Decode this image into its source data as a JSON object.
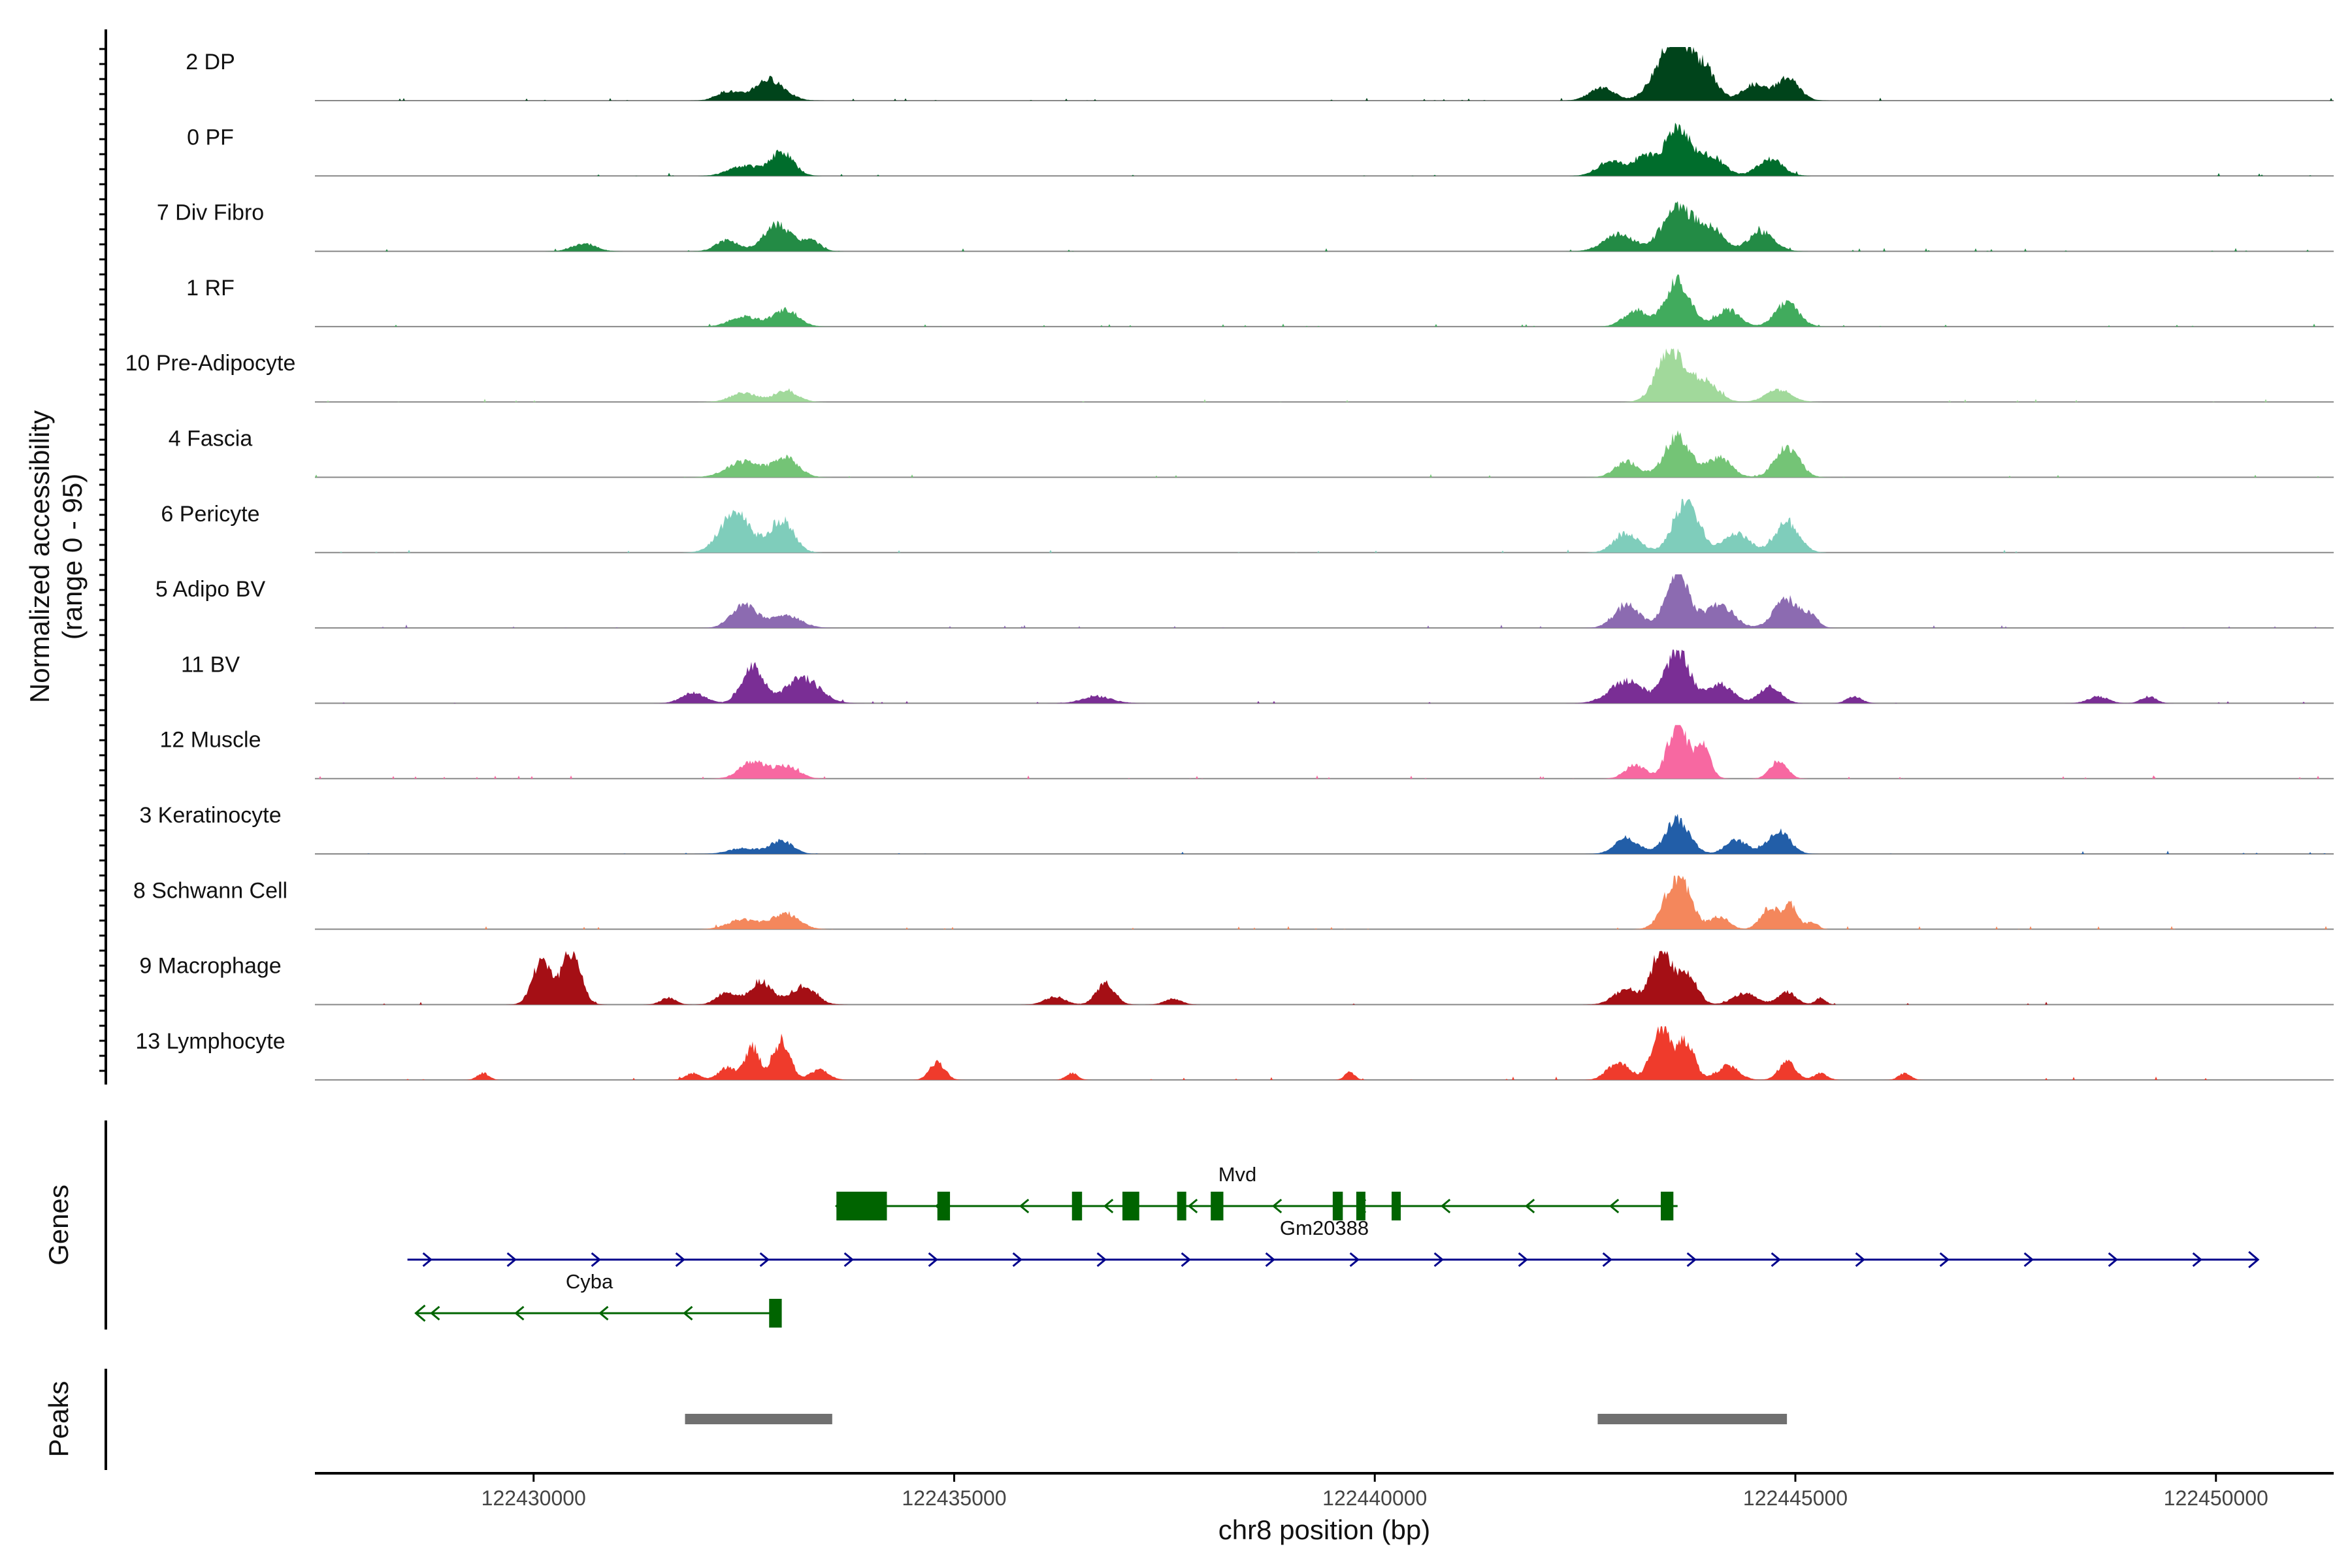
{
  "chart_data": {
    "type": "area",
    "title": "",
    "ylabel_line1": "Normalized accessibility",
    "ylabel_line2": "(range 0 - 95)",
    "xlabel": "chr8 position (bp)",
    "xlim": [
      122427400,
      122451400
    ],
    "ylim": [
      0,
      95
    ],
    "x_ticks": [
      122430000,
      122435000,
      122440000,
      122445000,
      122450000
    ],
    "x_tick_labels": [
      "122430000",
      "122435000",
      "122440000",
      "122445000",
      "122450000"
    ],
    "series": [
      {
        "name": "2 DP",
        "color": "#00441b",
        "peaks": [
          [
            122432300,
            130,
            16
          ],
          [
            122432800,
            180,
            38
          ],
          [
            122442700,
            150,
            22
          ],
          [
            122443400,
            160,
            45
          ],
          [
            122443600,
            140,
            95
          ],
          [
            122443900,
            150,
            60
          ],
          [
            122444500,
            130,
            28
          ],
          [
            122444900,
            140,
            40
          ]
        ]
      },
      {
        "name": "0 PF",
        "color": "#006d2c",
        "peaks": [
          [
            122432500,
            180,
            18
          ],
          [
            122432950,
            140,
            42
          ],
          [
            122442800,
            150,
            26
          ],
          [
            122443200,
            130,
            35
          ],
          [
            122443600,
            150,
            85
          ],
          [
            122444000,
            150,
            35
          ],
          [
            122444700,
            150,
            30
          ]
        ]
      },
      {
        "name": "7 Div Fibro",
        "color": "#238b45",
        "peaks": [
          [
            122430600,
            140,
            14
          ],
          [
            122432300,
            130,
            20
          ],
          [
            122432900,
            160,
            48
          ],
          [
            122433300,
            110,
            18
          ],
          [
            122442900,
            180,
            30
          ],
          [
            122443600,
            180,
            78
          ],
          [
            122444000,
            150,
            40
          ],
          [
            122444600,
            150,
            35
          ]
        ]
      },
      {
        "name": "1 RF",
        "color": "#41ab5d",
        "peaks": [
          [
            122432500,
            170,
            18
          ],
          [
            122433000,
            150,
            30
          ],
          [
            122443100,
            140,
            28
          ],
          [
            122443600,
            150,
            80
          ],
          [
            122444200,
            140,
            30
          ],
          [
            122444900,
            140,
            42
          ]
        ]
      },
      {
        "name": "10 Pre-Adipocyte",
        "color": "#a1d99b",
        "peaks": [
          [
            122432500,
            160,
            16
          ],
          [
            122433000,
            140,
            20
          ],
          [
            122443500,
            150,
            95
          ],
          [
            122443900,
            160,
            40
          ],
          [
            122444800,
            150,
            22
          ]
        ]
      },
      {
        "name": "4 Fascia",
        "color": "#74c476",
        "peaks": [
          [
            122432500,
            200,
            28
          ],
          [
            122433000,
            150,
            35
          ],
          [
            122443000,
            140,
            28
          ],
          [
            122443600,
            150,
            75
          ],
          [
            122444100,
            140,
            35
          ],
          [
            122444900,
            140,
            55
          ]
        ]
      },
      {
        "name": "6 Pericyte",
        "color": "#7fcdbb",
        "peaks": [
          [
            122432400,
            180,
            72
          ],
          [
            122432950,
            140,
            58
          ],
          [
            122443000,
            150,
            34
          ],
          [
            122443700,
            150,
            92
          ],
          [
            122444300,
            150,
            35
          ],
          [
            122444900,
            140,
            55
          ]
        ]
      },
      {
        "name": "5 Adipo BV",
        "color": "#8c6bb1",
        "peaks": [
          [
            122432500,
            150,
            40
          ],
          [
            122433000,
            180,
            22
          ],
          [
            122443000,
            150,
            40
          ],
          [
            122443600,
            140,
            95
          ],
          [
            122444100,
            160,
            42
          ],
          [
            122444900,
            150,
            52
          ],
          [
            122445200,
            80,
            18
          ]
        ]
      },
      {
        "name": "11 BV",
        "color": "#7a2e95",
        "peaks": [
          [
            122431900,
            140,
            18
          ],
          [
            122432600,
            130,
            65
          ],
          [
            122433200,
            200,
            45
          ],
          [
            122436700,
            180,
            12
          ],
          [
            122443000,
            200,
            40
          ],
          [
            122443600,
            140,
            95
          ],
          [
            122444100,
            150,
            35
          ],
          [
            122444700,
            130,
            30
          ],
          [
            122445700,
            90,
            12
          ],
          [
            122448600,
            120,
            12
          ],
          [
            122449200,
            90,
            12
          ]
        ]
      },
      {
        "name": "12 Muscle",
        "color": "#f768a1",
        "peaks": [
          [
            122432600,
            150,
            30
          ],
          [
            122433000,
            150,
            22
          ],
          [
            122443100,
            120,
            25
          ],
          [
            122443600,
            120,
            95
          ],
          [
            122443900,
            90,
            58
          ],
          [
            122444800,
            100,
            32
          ]
        ]
      },
      {
        "name": "3 Keratinocyte",
        "color": "#225ea8",
        "peaks": [
          [
            122432500,
            180,
            10
          ],
          [
            122432950,
            130,
            24
          ],
          [
            122443000,
            140,
            28
          ],
          [
            122443600,
            140,
            62
          ],
          [
            122444300,
            130,
            25
          ],
          [
            122444800,
            130,
            42
          ]
        ]
      },
      {
        "name": "8 Schwann Cell",
        "color": "#f4875c",
        "peaks": [
          [
            122432500,
            180,
            18
          ],
          [
            122433000,
            160,
            28
          ],
          [
            122443600,
            150,
            95
          ],
          [
            122444100,
            110,
            22
          ],
          [
            122444700,
            110,
            38
          ],
          [
            122444950,
            80,
            42
          ],
          [
            122445200,
            70,
            12
          ]
        ]
      },
      {
        "name": "9 Macrophage",
        "color": "#a50f15",
        "peaks": [
          [
            122430100,
            110,
            82
          ],
          [
            122430450,
            110,
            95
          ],
          [
            122431600,
            90,
            12
          ],
          [
            122432300,
            120,
            22
          ],
          [
            122432700,
            130,
            42
          ],
          [
            122433200,
            150,
            32
          ],
          [
            122436200,
            120,
            14
          ],
          [
            122436800,
            110,
            38
          ],
          [
            122437600,
            100,
            10
          ],
          [
            122443000,
            150,
            28
          ],
          [
            122443400,
            110,
            95
          ],
          [
            122443700,
            120,
            60
          ],
          [
            122444400,
            140,
            20
          ],
          [
            122444900,
            110,
            22
          ],
          [
            122445300,
            60,
            12
          ]
        ]
      },
      {
        "name": "13 Lymphocyte",
        "color": "#ef3b2c",
        "peaks": [
          [
            122429400,
            70,
            12
          ],
          [
            122431900,
            90,
            12
          ],
          [
            122432300,
            100,
            22
          ],
          [
            122432600,
            90,
            58
          ],
          [
            122432950,
            100,
            70
          ],
          [
            122433400,
            110,
            18
          ],
          [
            122434800,
            90,
            32
          ],
          [
            122436400,
            70,
            12
          ],
          [
            122439700,
            60,
            14
          ],
          [
            122442900,
            130,
            32
          ],
          [
            122443400,
            110,
            95
          ],
          [
            122443700,
            100,
            70
          ],
          [
            122444200,
            130,
            25
          ],
          [
            122444900,
            100,
            32
          ],
          [
            122445300,
            80,
            12
          ],
          [
            122446300,
            70,
            12
          ]
        ]
      }
    ]
  },
  "genes_panel": {
    "title": "Genes",
    "genes": [
      {
        "name": "Mvd",
        "strand": "-",
        "color": "#006400",
        "start": 122433600,
        "end": 122443600,
        "row": 0,
        "exons": [
          [
            122433600,
            122434200
          ],
          [
            122434800,
            122434950
          ],
          [
            122436400,
            122436520
          ],
          [
            122437000,
            122437200
          ],
          [
            122437650,
            122437750
          ],
          [
            122438050,
            122438200
          ],
          [
            122439500,
            122439620
          ],
          [
            122439780,
            122439880
          ],
          [
            122440200,
            122440260
          ],
          [
            122443400,
            122443550
          ]
        ]
      },
      {
        "name": "Gm20388",
        "strand": "+",
        "color": "#00008b",
        "start": 122428500,
        "end": 122450500,
        "row": 1,
        "exons": []
      },
      {
        "name": "Cyba",
        "strand": "-",
        "color": "#006400",
        "start": 122428600,
        "end": 122432900,
        "row": 2,
        "exons": [
          [
            122432800,
            122432950
          ]
        ]
      }
    ]
  },
  "peaks_panel": {
    "title": "Peaks",
    "peaks": [
      [
        122431800,
        122433550
      ],
      [
        122442650,
        122444900
      ]
    ]
  }
}
